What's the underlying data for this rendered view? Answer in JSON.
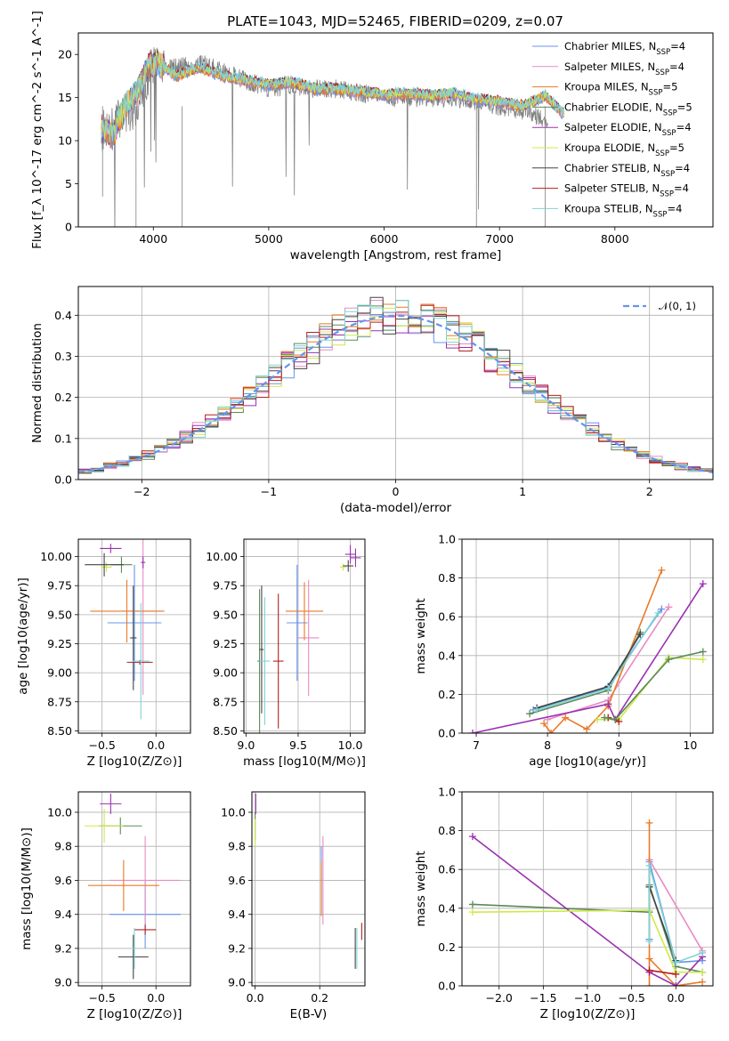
{
  "title": "PLATE=1043, MJD=52465, FIBERID=0209, z=0.07",
  "models": [
    {
      "name": "Chabrier MILES",
      "nssp": "4",
      "color": "#6495ed"
    },
    {
      "name": "Salpeter MILES",
      "nssp": "4",
      "color": "#e88bc4"
    },
    {
      "name": "Kroupa MILES",
      "nssp": "5",
      "color": "#ea7a28"
    },
    {
      "name": "Chabrier ELODIE",
      "nssp": "5",
      "color": "#5a8a5a"
    },
    {
      "name": "Salpeter ELODIE",
      "nssp": "4",
      "color": "#9b30b0"
    },
    {
      "name": "Kroupa ELODIE",
      "nssp": "5",
      "color": "#d0e84a"
    },
    {
      "name": "Chabrier STELIB",
      "nssp": "4",
      "color": "#444444"
    },
    {
      "name": "Salpeter STELIB",
      "nssp": "4",
      "color": "#b22020"
    },
    {
      "name": "Kroupa STELIB",
      "nssp": "4",
      "color": "#7fd3d8"
    }
  ],
  "chart_data": [
    {
      "type": "line",
      "xlabel": "wavelength [Angstrom, rest frame]",
      "ylabel": "Flux [f_λ 10^-17 erg cm^-2 s^-1 A^-1]",
      "xlim": [
        3350,
        8850
      ],
      "ylim": [
        0,
        22.5
      ],
      "xticks": [
        4000,
        5000,
        6000,
        7000,
        8000
      ],
      "yticks": [
        0,
        5,
        10,
        15,
        20
      ],
      "legend": "top-right",
      "observed_spectrum": {
        "color": "#808080",
        "x": [
          3550,
          3700,
          3850,
          4000,
          4200,
          4400,
          4600,
          4800,
          5000,
          5200,
          5400,
          5600,
          5800,
          6000,
          6200,
          6400,
          6600,
          6800,
          7000,
          7200,
          7400
        ],
        "y": [
          11,
          12.5,
          14,
          19,
          18.5,
          19,
          18,
          17,
          16,
          16.5,
          16,
          16,
          15.5,
          15,
          15,
          15,
          15,
          14.5,
          14,
          13.5,
          12.5
        ]
      },
      "model_x": [
        3550,
        3650,
        3750,
        3850,
        3950,
        4050,
        4200,
        4400,
        4600,
        4800,
        5000,
        5200,
        5400,
        5600,
        5800,
        6000,
        6200,
        6400,
        6600,
        6800,
        7000,
        7200,
        7400,
        7550
      ],
      "model_y": [
        11.5,
        10.5,
        14,
        15.5,
        18.5,
        19,
        17.5,
        18.5,
        17.5,
        17,
        16.5,
        16.8,
        16,
        16,
        15.7,
        15.3,
        15.5,
        15.2,
        15.5,
        14.8,
        14.5,
        14,
        15.2,
        13.2
      ]
    },
    {
      "type": "line",
      "xlabel": "(data-model)/error",
      "ylabel": "Normed distribution",
      "xlim": [
        -2.5,
        2.5
      ],
      "ylim": [
        0,
        0.47
      ],
      "xticks": [
        -2,
        -1,
        0,
        1,
        2
      ],
      "yticks": [
        0.0,
        0.1,
        0.2,
        0.3,
        0.4
      ],
      "legend": "top-right",
      "reference_curve": "N(0,1)",
      "bin_width": 0.1,
      "histogram_shape": "gaussian"
    },
    {
      "type": "scatter",
      "xlabel": "Z [log10(Z/Z⊙)]",
      "ylabel": "age [log10(age/yr)]",
      "xlim": [
        -0.72,
        0.32
      ],
      "ylim": [
        8.48,
        10.15
      ],
      "xticks": [
        -0.5,
        0.0
      ],
      "yticks": [
        8.5,
        8.75,
        9.0,
        9.25,
        9.5,
        9.75,
        10.0
      ],
      "points": [
        {
          "model": 0,
          "x": -0.2,
          "y": 9.43,
          "xerr": 0.25,
          "yerr": 0.5
        },
        {
          "model": 1,
          "x": -0.12,
          "y": 9.53,
          "xerr": 0.2,
          "yerr": 0.72
        },
        {
          "model": 2,
          "x": -0.27,
          "y": 9.53,
          "xerr": 0.34,
          "yerr": 0.27
        },
        {
          "model": 3,
          "x": -0.32,
          "y": 9.93,
          "xerr": 0.1,
          "yerr": 0.07
        },
        {
          "model": 4,
          "x": -0.42,
          "y": 10.07,
          "xerr": 0.1,
          "yerr": 0.04
        },
        {
          "model": 5,
          "x": -0.46,
          "y": 9.91,
          "xerr": 0.05,
          "yerr": 0.04
        },
        {
          "model": 6,
          "x": -0.21,
          "y": 9.3,
          "xerr": 0.03,
          "yerr": 0.45
        },
        {
          "model": 7,
          "x": -0.15,
          "y": 9.09,
          "xerr": 0.12,
          "yerr": 0.02
        },
        {
          "model": 8,
          "x": -0.14,
          "y": 9.1,
          "xerr": 0.08,
          "yerr": 0.5
        },
        {
          "model": 4,
          "x": -0.12,
          "y": 9.95,
          "xerr": 0.02,
          "yerr": 0.05
        },
        {
          "model": 6,
          "x": -0.48,
          "y": 9.93,
          "xerr": 0.18,
          "yerr": 0.1
        }
      ]
    },
    {
      "type": "scatter",
      "xlabel": "mass [log10(M/M⊙)]",
      "ylabel": "",
      "xlim": [
        8.98,
        10.14
      ],
      "ylim": [
        8.48,
        10.15
      ],
      "xticks": [
        9.0,
        9.5,
        10.0
      ],
      "yticks": [
        8.5,
        8.75,
        9.0,
        9.25,
        9.5,
        9.75,
        10.0
      ],
      "points": [
        {
          "model": 0,
          "x": 9.49,
          "y": 9.43,
          "xerr": 0.1,
          "yerr": 0.5
        },
        {
          "model": 1,
          "x": 9.6,
          "y": 9.3,
          "xerr": 0.1,
          "yerr": 0.5
        },
        {
          "model": 2,
          "x": 9.56,
          "y": 9.53,
          "xerr": 0.18,
          "yerr": 0.25
        },
        {
          "model": 3,
          "x": 9.13,
          "y": 9.1,
          "xerr": 0.02,
          "yerr": 0.62
        },
        {
          "model": 4,
          "x": 10.0,
          "y": 10.02,
          "xerr": 0.05,
          "yerr": 0.08
        },
        {
          "model": 5,
          "x": 9.93,
          "y": 9.91,
          "xerr": 0.03,
          "yerr": 0.03
        },
        {
          "model": 6,
          "x": 9.15,
          "y": 9.2,
          "xerr": 0.02,
          "yerr": 0.55
        },
        {
          "model": 7,
          "x": 9.31,
          "y": 9.1,
          "xerr": 0.05,
          "yerr": 0.58
        },
        {
          "model": 8,
          "x": 9.18,
          "y": 9.1,
          "xerr": 0.05,
          "yerr": 0.55
        },
        {
          "model": 4,
          "x": 10.05,
          "y": 9.99,
          "xerr": 0.05,
          "yerr": 0.08
        },
        {
          "model": 6,
          "x": 9.98,
          "y": 9.92,
          "xerr": 0.05,
          "yerr": 0.05
        }
      ]
    },
    {
      "type": "line",
      "xlabel": "age [log10(age/yr)]",
      "ylabel": "mass weight",
      "xlim": [
        6.8,
        10.32
      ],
      "ylim": [
        0,
        1.0
      ],
      "xticks": [
        7,
        8,
        9,
        10
      ],
      "yticks": [
        0.0,
        0.2,
        0.4,
        0.6,
        0.8,
        1.0
      ],
      "series": [
        {
          "model": 0,
          "x": [
            7.8,
            8.82,
            9.6
          ],
          "y": [
            0.12,
            0.23,
            0.64
          ]
        },
        {
          "model": 1,
          "x": [
            8.0,
            8.85,
            9.7
          ],
          "y": [
            0.07,
            0.17,
            0.65
          ]
        },
        {
          "model": 2,
          "x": [
            7.95,
            8.05,
            8.25,
            8.55,
            8.85,
            9.6
          ],
          "y": [
            0.05,
            0.0,
            0.08,
            0.02,
            0.14,
            0.84
          ]
        },
        {
          "model": 3,
          "x": [
            7.75,
            8.85,
            9.3
          ],
          "y": [
            0.1,
            0.22,
            0.52
          ]
        },
        {
          "model": 4,
          "x": [
            6.95,
            8.85,
            8.95,
            10.18
          ],
          "y": [
            0.0,
            0.15,
            0.07,
            0.77
          ]
        },
        {
          "model": 5,
          "x": [
            8.7,
            9.0,
            9.7,
            10.18
          ],
          "y": [
            0.07,
            0.07,
            0.39,
            0.38
          ]
        },
        {
          "model": 6,
          "x": [
            7.85,
            8.85,
            9.3
          ],
          "y": [
            0.13,
            0.24,
            0.51
          ]
        },
        {
          "model": 7,
          "x": [
            8.85,
            9.0
          ],
          "y": [
            0.08,
            0.06
          ]
        },
        {
          "model": 8,
          "x": [
            7.85,
            8.85,
            9.55
          ],
          "y": [
            0.12,
            0.23,
            0.62
          ]
        },
        {
          "model": 3,
          "x": [
            8.8,
            8.95,
            9.7,
            10.18
          ],
          "y": [
            0.08,
            0.07,
            0.38,
            0.42
          ]
        }
      ]
    },
    {
      "type": "scatter",
      "xlabel": "Z [log10(Z/Z⊙)]",
      "ylabel": "mass [log10(M/M⊙)]",
      "xlim": [
        -0.72,
        0.32
      ],
      "ylim": [
        8.98,
        10.12
      ],
      "xticks": [
        -0.5,
        0.0
      ],
      "yticks": [
        9.0,
        9.2,
        9.4,
        9.6,
        9.8,
        10.0
      ],
      "points": [
        {
          "model": 0,
          "x": -0.1,
          "y": 9.4,
          "xerr": 0.33,
          "yerr": 0.2
        },
        {
          "model": 1,
          "x": -0.1,
          "y": 9.6,
          "xerr": 0.33,
          "yerr": 0.26
        },
        {
          "model": 2,
          "x": -0.3,
          "y": 9.57,
          "xerr": 0.33,
          "yerr": 0.15
        },
        {
          "model": 3,
          "x": -0.33,
          "y": 9.92,
          "xerr": 0.2,
          "yerr": 0.05
        },
        {
          "model": 4,
          "x": -0.42,
          "y": 10.05,
          "xerr": 0.1,
          "yerr": 0.06
        },
        {
          "model": 5,
          "x": -0.48,
          "y": 9.92,
          "xerr": 0.18,
          "yerr": 0.1
        },
        {
          "model": 6,
          "x": -0.21,
          "y": 9.15,
          "xerr": 0.14,
          "yerr": 0.13
        },
        {
          "model": 7,
          "x": -0.1,
          "y": 9.31,
          "xerr": 0.1,
          "yerr": 0.03
        },
        {
          "model": 8,
          "x": -0.2,
          "y": 9.2,
          "xerr": 0.02,
          "yerr": 0.12
        }
      ]
    },
    {
      "type": "scatter",
      "xlabel": "E(B-V)",
      "ylabel": "",
      "xlim": [
        -0.01,
        0.34
      ],
      "ylim": [
        8.98,
        10.12
      ],
      "xticks": [
        0.0,
        0.2
      ],
      "yticks": [
        9.0,
        9.2,
        9.4,
        9.6,
        9.8,
        10.0
      ],
      "points": [
        {
          "model": 0,
          "x": 0.205,
          "y": 9.6,
          "xerr": 0,
          "yerr": 0.2
        },
        {
          "model": 1,
          "x": 0.21,
          "y": 9.6,
          "xerr": 0,
          "yerr": 0.26
        },
        {
          "model": 2,
          "x": 0.205,
          "y": 9.55,
          "xerr": 0,
          "yerr": 0.16
        },
        {
          "model": 3,
          "x": 0.0,
          "y": 9.92,
          "xerr": 0,
          "yerr": 0.08
        },
        {
          "model": 4,
          "x": 0.002,
          "y": 10.05,
          "xerr": 0,
          "yerr": 0.06
        },
        {
          "model": 5,
          "x": 0.0,
          "y": 9.88,
          "xerr": 0,
          "yerr": 0.08
        },
        {
          "model": 6,
          "x": 0.31,
          "y": 9.2,
          "xerr": 0,
          "yerr": 0.12
        },
        {
          "model": 7,
          "x": 0.33,
          "y": 9.3,
          "xerr": 0,
          "yerr": 0.05
        },
        {
          "model": 8,
          "x": 0.315,
          "y": 9.2,
          "xerr": 0,
          "yerr": 0.12
        }
      ]
    },
    {
      "type": "line",
      "xlabel": "Z [log10(Z/Z⊙)]",
      "ylabel": "mass weight",
      "xlim": [
        -2.42,
        0.42
      ],
      "ylim": [
        0,
        1.0
      ],
      "xticks": [
        -2.0,
        -1.5,
        -1.0,
        -0.5,
        0.0
      ],
      "yticks": [
        0.0,
        0.2,
        0.4,
        0.6,
        0.8,
        1.0
      ],
      "series": [
        {
          "model": 0,
          "x": [
            -0.3,
            -0.3,
            0.0,
            0.3
          ],
          "y": [
            0.24,
            0.64,
            0.12,
            0.13
          ]
        },
        {
          "model": 1,
          "x": [
            -0.3,
            0.3
          ],
          "y": [
            0.65,
            0.18
          ]
        },
        {
          "model": 2,
          "x": [
            -0.3,
            -0.3,
            -0.3,
            0.0,
            0.3
          ],
          "y": [
            0.84,
            0.0,
            0.14,
            0.0,
            0.02
          ]
        },
        {
          "model": 3,
          "x": [
            -2.3,
            -0.3,
            -0.3,
            0.0,
            0.3
          ],
          "y": [
            0.42,
            0.38,
            0.52,
            0.1,
            0.07
          ]
        },
        {
          "model": 4,
          "x": [
            -2.3,
            -0.3,
            0.0,
            0.3
          ],
          "y": [
            0.77,
            0.07,
            0.0,
            0.15
          ]
        },
        {
          "model": 5,
          "x": [
            -2.3,
            -0.3,
            -0.3,
            0.0,
            0.3
          ],
          "y": [
            0.38,
            0.39,
            0.39,
            0.07,
            0.07
          ]
        },
        {
          "model": 6,
          "x": [
            -0.3,
            0.0
          ],
          "y": [
            0.51,
            0.13
          ]
        },
        {
          "model": 7,
          "x": [
            -0.3,
            0.0
          ],
          "y": [
            0.08,
            0.06
          ]
        },
        {
          "model": 8,
          "x": [
            -0.3,
            -0.3,
            0.0,
            0.3
          ],
          "y": [
            0.23,
            0.62,
            0.12,
            0.17
          ]
        }
      ]
    }
  ]
}
